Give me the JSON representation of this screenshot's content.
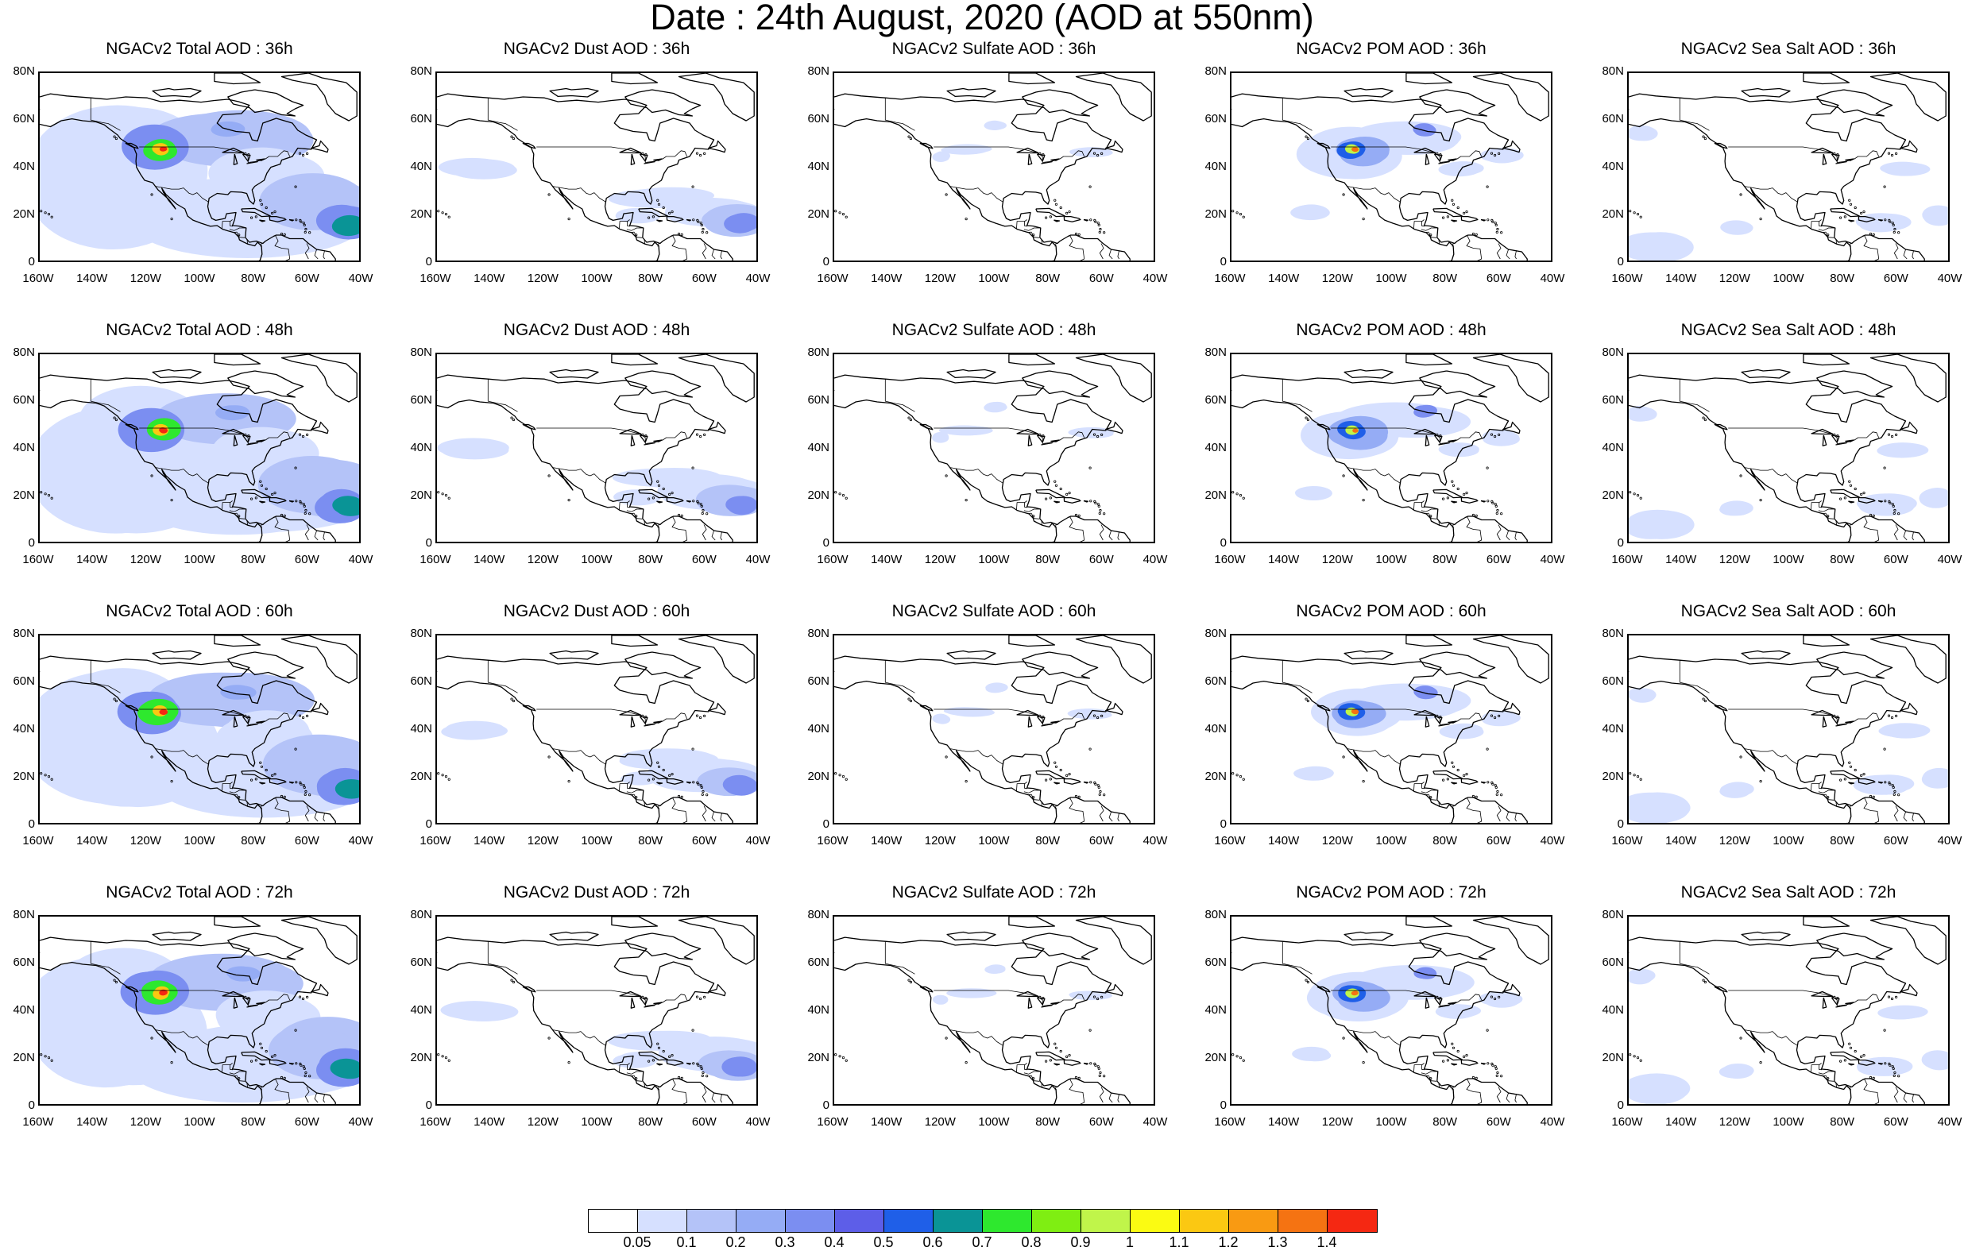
{
  "title": "Date : 24th August, 2020 (AOD at 550nm)",
  "axes": {
    "lat_labels": [
      "80N",
      "60N",
      "40N",
      "20N",
      "0"
    ],
    "lon_labels": [
      "160W",
      "140W",
      "120W",
      "100W",
      "80W",
      "60W",
      "40W"
    ]
  },
  "panels": [
    {
      "title": "NGACv2 Total AOD : 36h",
      "species": "total",
      "hour": 36
    },
    {
      "title": "NGACv2 Dust AOD : 36h",
      "species": "dust",
      "hour": 36
    },
    {
      "title": "NGACv2 Sulfate AOD : 36h",
      "species": "sulfate",
      "hour": 36
    },
    {
      "title": "NGACv2 POM AOD : 36h",
      "species": "pom",
      "hour": 36
    },
    {
      "title": "NGACv2 Sea Salt AOD : 36h",
      "species": "seasalt",
      "hour": 36
    },
    {
      "title": "NGACv2 Total AOD : 48h",
      "species": "total",
      "hour": 48
    },
    {
      "title": "NGACv2 Dust AOD : 48h",
      "species": "dust",
      "hour": 48
    },
    {
      "title": "NGACv2 Sulfate AOD : 48h",
      "species": "sulfate",
      "hour": 48
    },
    {
      "title": "NGACv2 POM AOD : 48h",
      "species": "pom",
      "hour": 48
    },
    {
      "title": "NGACv2 Sea Salt AOD : 48h",
      "species": "seasalt",
      "hour": 48
    },
    {
      "title": "NGACv2 Total AOD : 60h",
      "species": "total",
      "hour": 60
    },
    {
      "title": "NGACv2 Dust AOD : 60h",
      "species": "dust",
      "hour": 60
    },
    {
      "title": "NGACv2 Sulfate AOD : 60h",
      "species": "sulfate",
      "hour": 60
    },
    {
      "title": "NGACv2 POM AOD : 60h",
      "species": "pom",
      "hour": 60
    },
    {
      "title": "NGACv2 Sea Salt AOD : 60h",
      "species": "seasalt",
      "hour": 60
    },
    {
      "title": "NGACv2 Total AOD : 72h",
      "species": "total",
      "hour": 72
    },
    {
      "title": "NGACv2 Dust AOD : 72h",
      "species": "dust",
      "hour": 72
    },
    {
      "title": "NGACv2 Sulfate AOD : 72h",
      "species": "sulfate",
      "hour": 72
    },
    {
      "title": "NGACv2 POM AOD : 72h",
      "species": "pom",
      "hour": 72
    },
    {
      "title": "NGACv2 Sea Salt  AOD : 72h",
      "species": "seasalt",
      "hour": 72
    }
  ],
  "colorbar": {
    "colors": [
      "#ffffff",
      "#d6e0ff",
      "#b4c3f8",
      "#95acf5",
      "#7b8ef1",
      "#5d5ee8",
      "#1f5fe8",
      "#0a9496",
      "#2ee82e",
      "#7fee12",
      "#c0f54a",
      "#fbfb12",
      "#fbc812",
      "#f99a12",
      "#f57312",
      "#f52812"
    ],
    "labels": [
      "0.05",
      "0.1",
      "0.2",
      "0.3",
      "0.4",
      "0.5",
      "0.6",
      "0.7",
      "0.8",
      "0.9",
      "1",
      "1.1",
      "1.2",
      "1.3",
      "1.4"
    ]
  }
}
